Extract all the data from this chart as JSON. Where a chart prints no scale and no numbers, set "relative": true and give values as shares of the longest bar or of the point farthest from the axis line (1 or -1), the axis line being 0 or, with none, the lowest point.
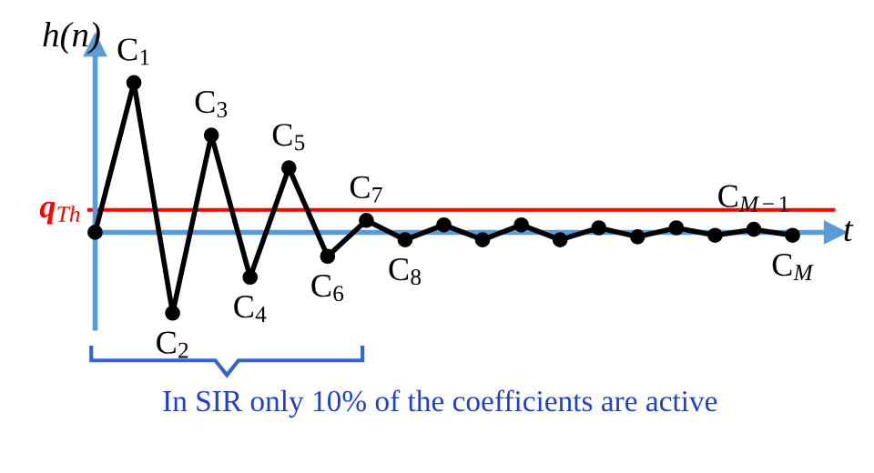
{
  "chart_data": {
    "type": "line",
    "relative": true,
    "ylabel": "h(n)",
    "xlabel": "t",
    "categories": [
      null,
      null,
      null,
      null,
      null,
      null,
      null,
      null,
      null,
      null,
      null,
      null,
      null,
      null,
      null,
      null,
      null,
      null,
      null
    ],
    "series": [
      {
        "color": "#000000",
        "values": [
          0,
          1,
          -0.54,
          0.65,
          -0.3,
          0.43,
          -0.16,
          0.08,
          -0.05,
          0.05,
          -0.05,
          0.05,
          -0.05,
          0.03,
          -0.03,
          0.03,
          -0.02,
          0.02,
          -0.02
        ]
      }
    ],
    "marker": "circle",
    "line_style": "solid",
    "ref_lines": [
      {
        "axis": "y",
        "value": 0,
        "color": "#5b9bd5"
      },
      {
        "axis": "y",
        "value": 0.15,
        "label": "q$_{Th}$",
        "color": "#ff0000"
      }
    ],
    "annotations": [
      {
        "text": "C$_{1}$",
        "y": 1
      },
      {
        "text": "C$_{2}$",
        "y": -0.54
      },
      {
        "text": "C$_{3}$",
        "y": 0.65
      },
      {
        "text": "C$_{4}$",
        "y": -0.3
      },
      {
        "text": "C$_{5}$",
        "y": 0.43
      },
      {
        "text": "C$_{6}$",
        "y": -0.16
      },
      {
        "text": "C$_{7}$",
        "y": 0.08
      },
      {
        "text": "C$_{8}$",
        "y": -0.05
      },
      {
        "text": "C$_{M−1}$",
        "y": 0.02
      },
      {
        "text": "C$_{M}$",
        "y": -0.02
      },
      "In SIR only 10% of the coefficients are active"
    ]
  }
}
